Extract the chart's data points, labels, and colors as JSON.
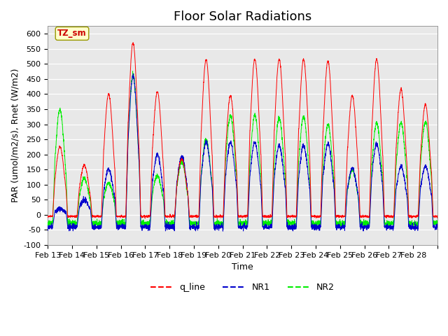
{
  "title": "Floor Solar Radiations",
  "xlabel": "Time",
  "ylabel": "PAR (umol/m2/s), Rnet (W/m2)",
  "ylim": [
    -100,
    625
  ],
  "yticks": [
    -100,
    -50,
    0,
    50,
    100,
    150,
    200,
    250,
    300,
    350,
    400,
    450,
    500,
    550,
    600
  ],
  "xtick_positions": [
    0,
    1,
    2,
    3,
    4,
    5,
    6,
    7,
    8,
    9,
    10,
    11,
    12,
    13,
    14,
    15,
    16
  ],
  "xtick_labels": [
    "Feb 13",
    "Feb 14",
    "Feb 15",
    "Feb 16",
    "Feb 17",
    "Feb 18",
    "Feb 19",
    "Feb 20",
    "Feb 21",
    "Feb 22",
    "Feb 23",
    "Feb 24",
    "Feb 25",
    "Feb 26",
    "Feb 27",
    "Feb 28",
    ""
  ],
  "legend_label": "TZ_sm",
  "line_labels": [
    "q_line",
    "NR1",
    "NR2"
  ],
  "line_colors": [
    "#ff0000",
    "#0000cc",
    "#00ee00"
  ],
  "bg_color": "#e8e8e8",
  "fig_bg_color": "#ffffff",
  "title_fontsize": 13,
  "axis_label_fontsize": 9,
  "tick_fontsize": 8,
  "red_peaks": [
    225,
    165,
    400,
    570,
    408,
    185,
    515,
    395,
    515,
    515,
    515,
    510,
    395,
    515,
    415,
    365
  ],
  "nr1_peaks": [
    20,
    50,
    150,
    460,
    200,
    195,
    240,
    240,
    240,
    230,
    230,
    235,
    155,
    235,
    160,
    160
  ],
  "nr2_peaks": [
    350,
    120,
    105,
    465,
    130,
    175,
    250,
    330,
    330,
    320,
    325,
    300,
    150,
    305,
    305,
    308
  ],
  "red_night": -5,
  "nr1_night": -40,
  "nr2_night": -28,
  "days": 16
}
